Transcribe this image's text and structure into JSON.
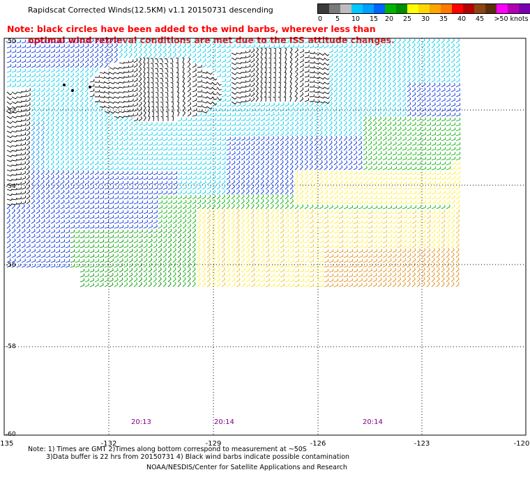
{
  "title": "Rapidscat Corrected Winds(12.5KM) v1.1 20150731 descending",
  "notice": {
    "line1": "Note: black circles have been added to the wind barbs, wherever less than",
    "line2": "optimal wind retrieval conditions are met due to the ISS attitude changes."
  },
  "color_scale": {
    "unit_label": ">50 knots",
    "tick_labels": [
      "0",
      "5",
      "10",
      "15",
      "20",
      "25",
      "30",
      "35",
      "40",
      "45"
    ],
    "colors": [
      "#3a3a3a",
      "#7a7a7a",
      "#bdbdbd",
      "#00c8ff",
      "#00a0ff",
      "#0064ff",
      "#00b400",
      "#008c00",
      "#ffff00",
      "#ffd700",
      "#ffa500",
      "#ff7a00",
      "#ff0000",
      "#b40000",
      "#8b4513",
      "#5a2d0c",
      "#ff00ff",
      "#b000b0",
      "#7a00b0",
      "#4b0082"
    ]
  },
  "map": {
    "lat_labels": [
      "-50",
      "-52",
      "-54",
      "-56",
      "-58",
      "-60"
    ],
    "lon_labels": [
      "-135",
      "-132",
      "-129",
      "-126",
      "-123",
      "-120"
    ],
    "time_labels": [
      "20:13",
      "20:14",
      "20:14"
    ],
    "colors": {
      "black": "#000000",
      "cyan": "#00ccee",
      "blue": "#0030e0",
      "mid_blue": "#0090f0",
      "green": "#00b000",
      "dark_green": "#008a00",
      "yellow": "#ffee33",
      "gold": "#f0c020",
      "orange": "#e08a10",
      "time_label": "#800080"
    }
  },
  "footer": {
    "line1": "Note: 1) Times are GMT 2)Times along bottom correspond to measurement at ~50S",
    "line2": "3)Data buffer is 22 hrs from 20150731 4) Black wind barbs indicate possible contamination",
    "line3": "NOAA/NESDIS/Center for Satellite Applications and Research"
  }
}
